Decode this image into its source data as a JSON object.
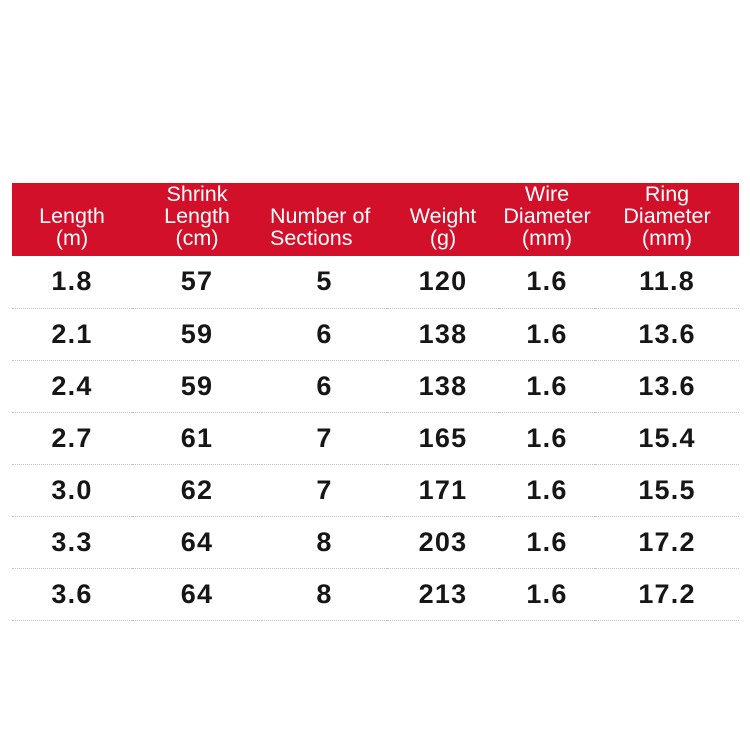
{
  "theme": {
    "page_bg": "#ffffff",
    "header_bg": "#d2102a",
    "header_text": "#ffffff",
    "body_text": "#161616",
    "divider": "#c2c2c2"
  },
  "table": {
    "columns": [
      {
        "id": "length",
        "lines": [
          "Length",
          "(m)"
        ],
        "align": "center"
      },
      {
        "id": "shrink-length",
        "lines": [
          "Shrink",
          "Length",
          "(cm)"
        ],
        "align": "center"
      },
      {
        "id": "sections",
        "lines": [
          "Number of",
          "Sections"
        ],
        "align": "left"
      },
      {
        "id": "weight",
        "lines": [
          "Weight",
          "(g)"
        ],
        "align": "center"
      },
      {
        "id": "wire-diameter",
        "lines": [
          "Wire",
          "Diameter",
          "(mm)"
        ],
        "align": "center"
      },
      {
        "id": "ring-diameter",
        "lines": [
          "Ring",
          "Diameter",
          "(mm)"
        ],
        "align": "center"
      }
    ],
    "rows": [
      [
        "1.8",
        "57",
        "5",
        "120",
        "1.6",
        "11.8"
      ],
      [
        "2.1",
        "59",
        "6",
        "138",
        "1.6",
        "13.6"
      ],
      [
        "2.4",
        "59",
        "6",
        "138",
        "1.6",
        "13.6"
      ],
      [
        "2.7",
        "61",
        "7",
        "165",
        "1.6",
        "15.4"
      ],
      [
        "3.0",
        "62",
        "7",
        "171",
        "1.6",
        "15.5"
      ],
      [
        "3.3",
        "64",
        "8",
        "203",
        "1.6",
        "17.2"
      ],
      [
        "3.6",
        "64",
        "8",
        "213",
        "1.6",
        "17.2"
      ]
    ]
  },
  "chart_data": {
    "type": "table",
    "title": "",
    "columns": [
      "Length (m)",
      "Shrink Length (cm)",
      "Number of Sections",
      "Weight (g)",
      "Wire Diameter (mm)",
      "Ring Diameter (mm)"
    ],
    "rows": [
      [
        1.8,
        57,
        5,
        120,
        1.6,
        11.8
      ],
      [
        2.1,
        59,
        6,
        138,
        1.6,
        13.6
      ],
      [
        2.4,
        59,
        6,
        138,
        1.6,
        13.6
      ],
      [
        2.7,
        61,
        7,
        165,
        1.6,
        15.4
      ],
      [
        3.0,
        62,
        7,
        171,
        1.6,
        15.5
      ],
      [
        3.3,
        64,
        8,
        203,
        1.6,
        17.2
      ],
      [
        3.6,
        64,
        8,
        213,
        1.6,
        17.2
      ]
    ]
  }
}
